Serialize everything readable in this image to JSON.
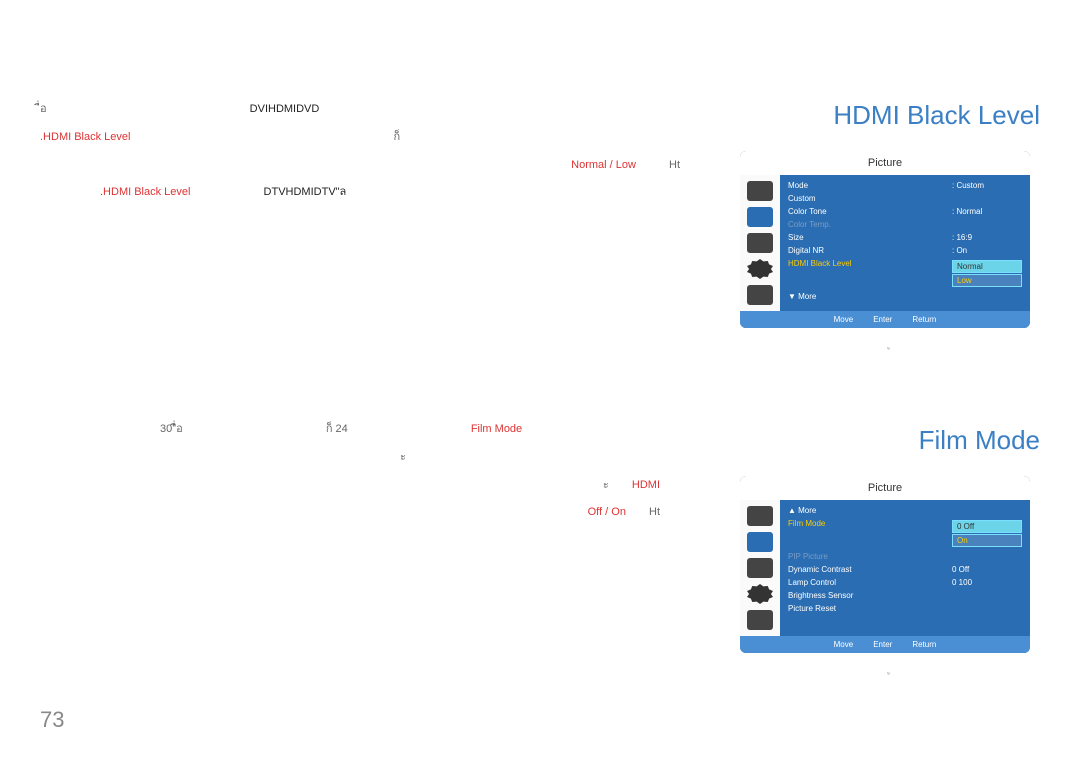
{
  "page_number": "73",
  "hdmi_section": {
    "title": "HDMI Black Level",
    "line1_prefix": "ื่อ",
    "line1_black": "DVIHDMIDVD",
    "line2_red": ".HDMI Black Level",
    "line2_suffix": "ก็",
    "line3_red": "Normal / Low",
    "line3_suffix": "Ht",
    "line4_red": ".HDMI Black Level",
    "line4_black": "DTVHDMIDTV\"ล"
  },
  "film_section": {
    "title": "Film Mode",
    "line1_a": "30\"ื่อ",
    "line1_b": "ก็  24",
    "line1_red": "Film Mode",
    "line2": "ะ",
    "line3_red": "HDMI",
    "line4_red": "Off / On",
    "line4_suffix": "Ht"
  },
  "menu1": {
    "header": "Picture",
    "rows": [
      {
        "label": "Mode",
        "value": ": Custom",
        "class": ""
      },
      {
        "label": "Custom",
        "value": "",
        "class": ""
      },
      {
        "label": "Color Tone",
        "value": ": Normal",
        "class": ""
      },
      {
        "label": "Color Temp.",
        "value": "",
        "class": "disabled"
      },
      {
        "label": "Size",
        "value": ": 16:9",
        "class": ""
      },
      {
        "label": "Digital NR",
        "value": ": On",
        "class": ""
      },
      {
        "label": "HDMI Black Level",
        "value": "",
        "class": "highlight-yellow"
      }
    ],
    "dropdown": [
      {
        "text": "Normal",
        "selected": true
      },
      {
        "text": "Low",
        "selected": false
      }
    ],
    "more": "▼ More",
    "footer": [
      "Move",
      "Enter",
      "Return"
    ],
    "caption": "ู"
  },
  "menu2": {
    "header": "Picture",
    "more_top": "▲ More",
    "rows": [
      {
        "label": "Film Mode",
        "value": "",
        "class": "highlight-yellow"
      },
      {
        "label": "PIP Picture",
        "value": "",
        "class": "disabled"
      },
      {
        "label": "Dynamic Contrast",
        "value": "0 Off",
        "class": ""
      },
      {
        "label": "Lamp Control",
        "value": "0 100",
        "class": ""
      },
      {
        "label": "Brightness Sensor",
        "value": "",
        "class": ""
      },
      {
        "label": "Picture Reset",
        "value": "",
        "class": ""
      }
    ],
    "dropdown": [
      {
        "text": "Off",
        "selected": true,
        "prefix": "0"
      },
      {
        "text": "On",
        "selected": false,
        "prefix": ""
      }
    ],
    "footer": [
      "Move",
      "Enter",
      "Return"
    ],
    "caption": "ู"
  },
  "colors": {
    "blue_title": "#3b7fc4",
    "menu_bg": "#2a6db2",
    "red": "#d33",
    "yellow": "#ffcc00"
  }
}
